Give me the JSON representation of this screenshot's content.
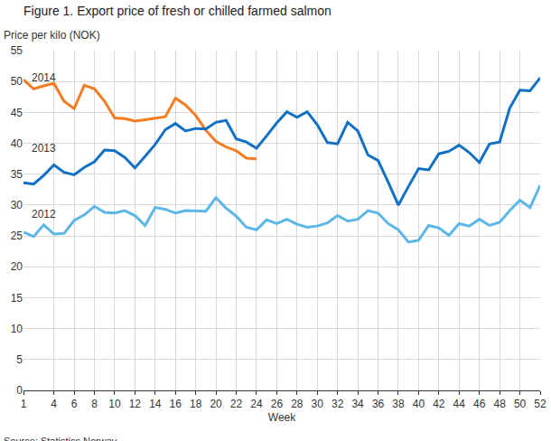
{
  "chart_data": {
    "type": "line",
    "title": "Figure 1. Export price of fresh or chilled farmed salmon",
    "y_label": "Price per kilo (NOK)",
    "x_label": "Week",
    "source": "Source: Statistics Norway.",
    "x": [
      1,
      2,
      3,
      4,
      5,
      6,
      7,
      8,
      9,
      10,
      11,
      12,
      13,
      14,
      15,
      16,
      17,
      18,
      19,
      20,
      21,
      22,
      23,
      24,
      25,
      26,
      27,
      28,
      29,
      30,
      31,
      32,
      33,
      34,
      35,
      36,
      37,
      38,
      39,
      40,
      41,
      42,
      43,
      44,
      45,
      46,
      47,
      48,
      49,
      50,
      51,
      52
    ],
    "series": [
      {
        "name": "2014",
        "color": "#f47b20",
        "values": [
          50.3,
          48.8,
          49.3,
          49.7,
          46.8,
          45.6,
          49.4,
          48.8,
          46.8,
          44.1,
          44.0,
          43.6,
          43.8,
          44.0,
          44.3,
          47.3,
          46.2,
          44.5,
          42.1,
          40.3,
          39.4,
          38.8,
          37.6,
          37.5,
          null,
          null,
          null,
          null,
          null,
          null,
          null,
          null,
          null,
          null,
          null,
          null,
          null,
          null,
          null,
          null,
          null,
          null,
          null,
          null,
          null,
          null,
          null,
          null,
          null,
          null,
          null,
          null
        ]
      },
      {
        "name": "2013",
        "color": "#1071c4",
        "values": [
          33.6,
          33.4,
          34.8,
          36.5,
          35.3,
          34.9,
          36.1,
          37.0,
          38.9,
          38.8,
          37.7,
          36.0,
          37.9,
          39.8,
          42.2,
          43.2,
          42.0,
          42.4,
          42.3,
          43.4,
          43.7,
          40.7,
          40.2,
          39.2,
          41.2,
          43.3,
          45.1,
          44.2,
          45.1,
          43.0,
          40.1,
          39.9,
          43.4,
          42.0,
          38.1,
          37.2,
          33.7,
          30.0,
          33.0,
          35.9,
          35.7,
          38.3,
          38.7,
          39.7,
          38.5,
          36.9,
          39.9,
          40.2,
          45.7,
          48.6,
          48.5,
          50.6
        ]
      },
      {
        "name": "2012",
        "color": "#5db7e6",
        "values": [
          25.6,
          24.9,
          26.8,
          25.3,
          25.4,
          27.5,
          28.4,
          29.8,
          28.8,
          28.7,
          29.1,
          28.3,
          26.7,
          29.6,
          29.3,
          28.7,
          29.1,
          29.1,
          29.0,
          31.2,
          29.5,
          28.2,
          26.4,
          26.0,
          27.6,
          27.0,
          27.7,
          26.9,
          26.4,
          26.6,
          27.1,
          28.3,
          27.4,
          27.7,
          29.1,
          28.7,
          27.0,
          26.0,
          24.0,
          24.3,
          26.7,
          26.3,
          25.1,
          27.0,
          26.6,
          27.7,
          26.7,
          27.2,
          29.1,
          30.8,
          29.6,
          33.2
        ]
      }
    ],
    "xlim": [
      1,
      52
    ],
    "xticks": [
      1,
      4,
      6,
      8,
      10,
      12,
      14,
      16,
      18,
      20,
      22,
      24,
      26,
      28,
      30,
      32,
      34,
      36,
      38,
      40,
      42,
      44,
      46,
      48,
      50,
      52
    ],
    "ylim": [
      0,
      55
    ],
    "yticks": [
      0,
      5,
      10,
      15,
      20,
      25,
      30,
      35,
      40,
      45,
      50,
      55
    ],
    "grid": true
  }
}
